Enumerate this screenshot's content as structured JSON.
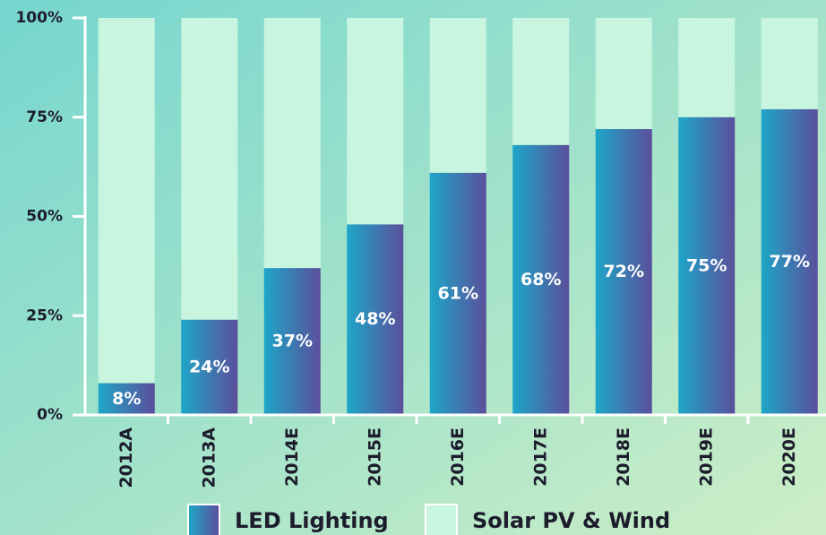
{
  "chart_data": {
    "type": "stacked_bar",
    "categories": [
      "2012A",
      "2013A",
      "2014E",
      "2015E",
      "2016E",
      "2017E",
      "2018E",
      "2019E",
      "2020E"
    ],
    "series": [
      {
        "name": "LED Lighting",
        "color": [
          "#1ea6c8",
          "#5b4f9b"
        ],
        "values": [
          8,
          24,
          37,
          48,
          61,
          68,
          72,
          75,
          77
        ],
        "value_labels": [
          "8%",
          "24%",
          "37%",
          "48%",
          "61%",
          "68%",
          "72%",
          "75%",
          "77%"
        ]
      },
      {
        "name": "Solar PV & Wind",
        "color": "#c8f5df",
        "values": [
          92,
          76,
          63,
          52,
          39,
          32,
          28,
          25,
          23
        ]
      }
    ],
    "ylim": [
      0,
      100
    ],
    "yticks": [
      {
        "value": 0,
        "label": "0%"
      },
      {
        "value": 25,
        "label": "25%"
      },
      {
        "value": 50,
        "label": "50%"
      },
      {
        "value": 75,
        "label": "75%"
      },
      {
        "value": 100,
        "label": "100%"
      }
    ]
  }
}
